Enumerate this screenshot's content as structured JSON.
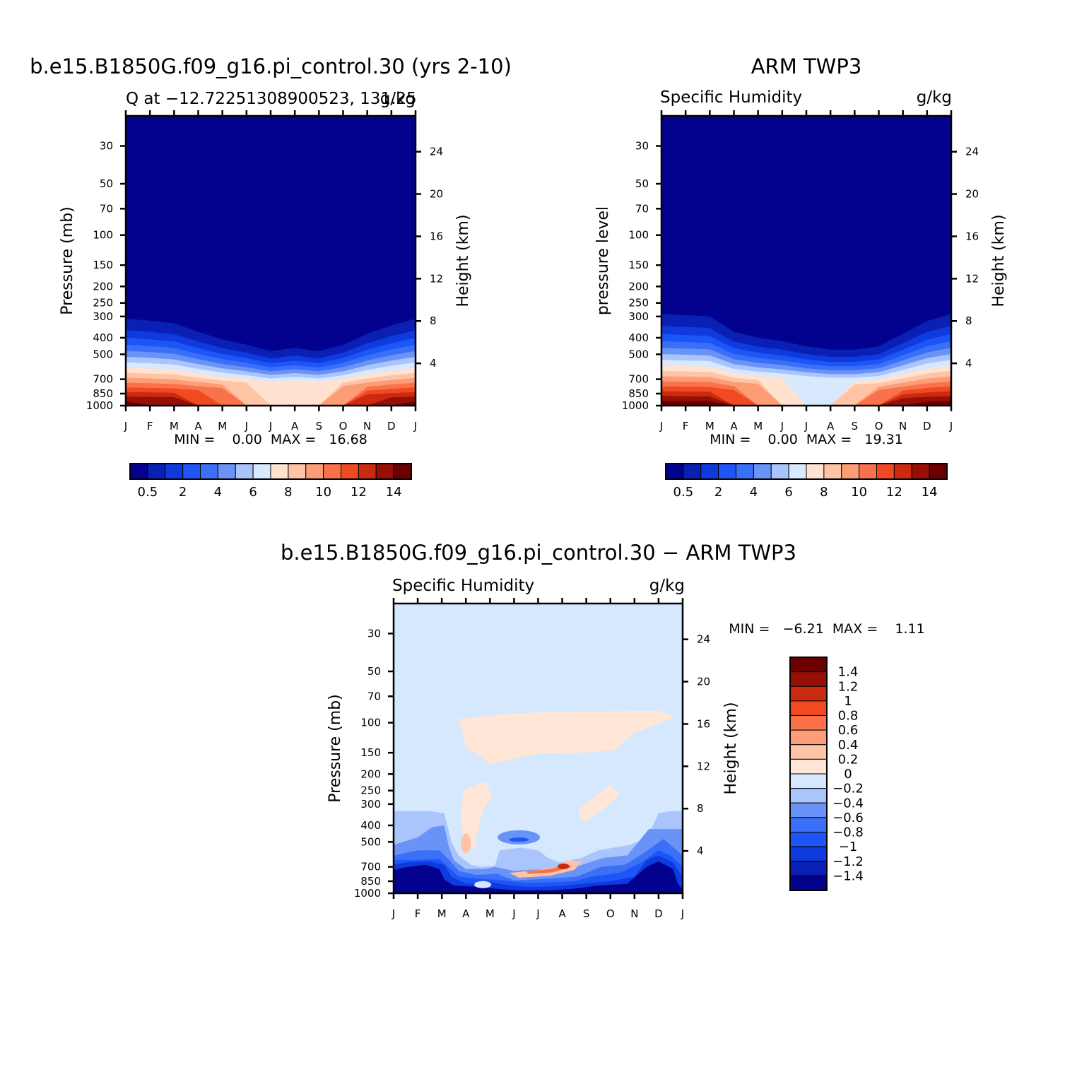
{
  "chart_data": [
    {
      "type": "heatmap",
      "panel": "model",
      "title": "b.e15.B1850G.f09_g16.pi_control.30 (yrs 2-10)",
      "left_string": "Q at −12.72251308900523, 131.25",
      "right_string": "g/kg",
      "ylabel": "Pressure (mb)",
      "ylabel_right": "Height (km)",
      "stats_text": "MIN =    0.00  MAX =   16.68",
      "x_ticklabels": [
        "J",
        "F",
        "M",
        "A",
        "M",
        "J",
        "J",
        "A",
        "S",
        "O",
        "N",
        "D",
        "J"
      ],
      "y_ticks": [
        30,
        50,
        70,
        100,
        150,
        200,
        250,
        300,
        400,
        500,
        700,
        850,
        1000
      ],
      "y_ticklabels": [
        "30",
        "50",
        "70",
        "100",
        "150",
        "200",
        "250",
        "300",
        "400",
        "500",
        "700",
        "850",
        "1000"
      ],
      "ylim_mb": [
        1000,
        20
      ],
      "y_scale": "log",
      "height_ticks_km": [
        4,
        8,
        12,
        16,
        20,
        24
      ],
      "months": [
        0,
        1,
        2,
        3,
        4,
        5,
        6,
        7,
        8,
        9,
        10,
        11,
        12
      ],
      "moist_top_mb": [
        310,
        318,
        330,
        370,
        410,
        440,
        480,
        460,
        480,
        440,
        380,
        340,
        310
      ],
      "surface_peak_gkg": [
        16,
        15.5,
        15,
        13,
        12,
        10,
        9,
        9,
        9,
        11,
        14,
        15.5,
        16
      ],
      "colorbar_labels": [
        "0.5",
        "2",
        "4",
        "6",
        "8",
        "10",
        "12",
        "14"
      ]
    },
    {
      "type": "heatmap",
      "panel": "obs",
      "title": "ARM TWP3",
      "left_string": "Specific Humidity",
      "right_string": "g/kg",
      "ylabel": "pressure level",
      "ylabel_right": "Height (km)",
      "stats_text": "MIN =    0.00  MAX =   19.31",
      "x_ticklabels": [
        "J",
        "F",
        "M",
        "A",
        "M",
        "J",
        "J",
        "A",
        "S",
        "O",
        "N",
        "D",
        "J"
      ],
      "y_ticks": [
        30,
        50,
        70,
        100,
        150,
        200,
        250,
        300,
        400,
        500,
        700,
        850,
        1000
      ],
      "y_ticklabels": [
        "30",
        "50",
        "70",
        "100",
        "150",
        "200",
        "250",
        "300",
        "400",
        "500",
        "700",
        "850",
        "1000"
      ],
      "ylim_mb": [
        1000,
        20
      ],
      "y_scale": "log",
      "height_ticks_km": [
        4,
        8,
        12,
        16,
        20,
        24
      ],
      "months": [
        0,
        1,
        2,
        3,
        4,
        5,
        6,
        7,
        8,
        9,
        10,
        11,
        12
      ],
      "moist_top_mb": [
        290,
        295,
        300,
        370,
        400,
        420,
        450,
        470,
        470,
        450,
        380,
        320,
        290
      ],
      "surface_peak_gkg": [
        17,
        16.5,
        16,
        13,
        11,
        9,
        8,
        8,
        10,
        12,
        15,
        16.5,
        17
      ],
      "colorbar_labels": [
        "0.5",
        "2",
        "4",
        "6",
        "8",
        "10",
        "12",
        "14"
      ]
    },
    {
      "type": "heatmap",
      "panel": "difference",
      "title": "b.e15.B1850G.f09_g16.pi_control.30 − ARM TWP3",
      "left_string": "Specific Humidity",
      "right_string": "g/kg",
      "ylabel": "Pressure (mb)",
      "ylabel_right": "Height (km)",
      "stats_text": "MIN =   −6.21  MAX =    1.11",
      "x_ticklabels": [
        "J",
        "F",
        "M",
        "A",
        "M",
        "J",
        "J",
        "A",
        "S",
        "O",
        "N",
        "D",
        "J"
      ],
      "y_ticks": [
        30,
        50,
        70,
        100,
        150,
        200,
        250,
        300,
        400,
        500,
        700,
        850,
        1000
      ],
      "y_ticklabels": [
        "30",
        "50",
        "70",
        "100",
        "150",
        "200",
        "250",
        "300",
        "400",
        "500",
        "700",
        "850",
        "1000"
      ],
      "ylim_mb": [
        1000,
        20
      ],
      "y_scale": "log",
      "height_ticks_km": [
        4,
        8,
        12,
        16,
        20,
        24
      ],
      "background_value": -0.1,
      "features": [
        {
          "kind": "positive-upper-band",
          "value": 0.1,
          "month_range": [
            2.7,
            11.7
          ],
          "mb_range": [
            80,
            190
          ]
        },
        {
          "kind": "negative-low-level",
          "value": -1.5,
          "months": [
            "Jan",
            "Feb",
            "Mar",
            "Nov",
            "Dec"
          ],
          "mb_range": [
            600,
            1000
          ]
        },
        {
          "kind": "positive-low-level",
          "value": 0.6,
          "months": [
            "Jun",
            "Jul",
            "Aug"
          ],
          "mb_range": [
            650,
            780
          ]
        }
      ],
      "colorbar_labels": [
        "1.4",
        "1.2",
        "1",
        "0.8",
        "0.6",
        "0.4",
        "0.2",
        "0",
        "−0.2",
        "−0.4",
        "−0.6",
        "−0.8",
        "−1",
        "−1.2",
        "−1.4"
      ]
    }
  ],
  "palette": {
    "abs": [
      "#03028e",
      "#0a1fb4",
      "#0e3ade",
      "#1d55f6",
      "#3a6ff8",
      "#6a93f8",
      "#a9c5fb",
      "#d8e8fd",
      "#ffe2cf",
      "#ffc3a5",
      "#fc9d76",
      "#f9724b",
      "#ef4a22",
      "#c92a10",
      "#971008",
      "#6c0000"
    ],
    "diff": [
      "#03028e",
      "#0a1fb4",
      "#0e3ade",
      "#1d55f6",
      "#3a6ff8",
      "#6a93f8",
      "#a9c5fb",
      "#d6e8fe",
      "#ffe6d6",
      "#ffc3a5",
      "#fc9d76",
      "#f9724b",
      "#ef4a22",
      "#c92a10",
      "#971008",
      "#6c0000"
    ]
  }
}
